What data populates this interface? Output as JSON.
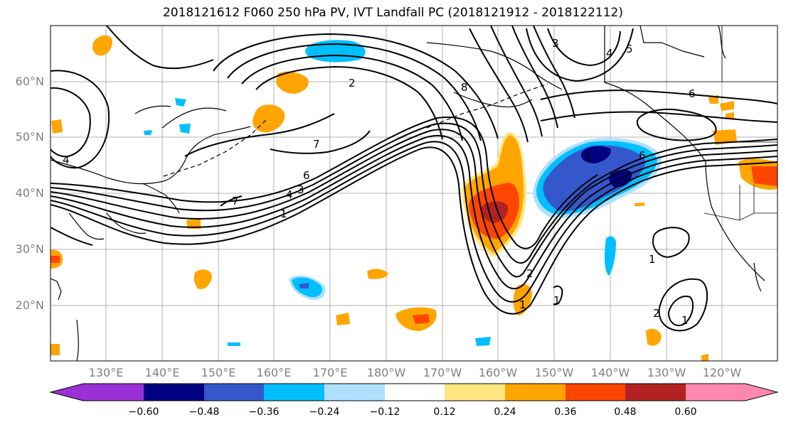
{
  "title": "2018121612 F060 250 hPa PV, IVT Landfall PC (2018121912 - 2018122112)",
  "lat_labels": [
    "60°N",
    "50°N",
    "40°N",
    "30°N",
    "20°N"
  ],
  "lon_labels": [
    "130°E",
    "140°E",
    "150°E",
    "160°E",
    "170°E",
    "180°W",
    "170°W",
    "160°W",
    "150°W",
    "140°W",
    "130°W",
    "120°W"
  ],
  "contour_labels": [
    "2",
    "8",
    "3",
    "4",
    "5",
    "6",
    "4",
    "7",
    "6",
    "4",
    "3",
    "7",
    "1",
    "2",
    "1",
    "1",
    "6",
    "1",
    "1",
    "2",
    "1"
  ],
  "colorbar": {
    "ticks": [
      "−0.60",
      "−0.48",
      "−0.36",
      "−0.24",
      "−0.12",
      "0.12",
      "0.24",
      "0.36",
      "0.48",
      "0.60"
    ],
    "colors": [
      "#9b30d6",
      "#000080",
      "#3458cc",
      "#00bfff",
      "#b0e0ff",
      "#ffffff",
      "#ffe680",
      "#ffa500",
      "#ff4500",
      "#b22222",
      "#ff88b0"
    ]
  },
  "shading_colors": {
    "neg_strong": "#000080",
    "neg_mid": "#3458cc",
    "neg_weak": "#00bfff",
    "neg_faint": "#b0e0ff",
    "pos_faint": "#ffe680",
    "pos_weak": "#ffa500",
    "pos_mid": "#ff4500",
    "pos_strong": "#b22222"
  }
}
